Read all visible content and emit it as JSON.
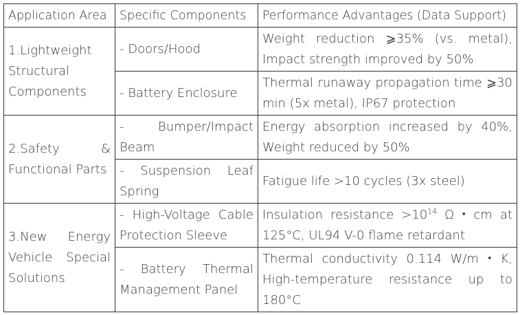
{
  "table": {
    "header": [
      "Application Area",
      "Specific Components",
      "Performance Advantages (Data Support)"
    ],
    "groups": [
      {
        "area": "1.Lightweight Structural Components",
        "rows": [
          {
            "component": "- Doors/Hood",
            "advantage": "Weight reduction ⩾35% (vs. metal), Impact strength improved by 50%"
          },
          {
            "component": "- Battery Enclosure",
            "advantage": "Thermal runaway propagation time ⩾30 min (5x metal), IP67 protection"
          }
        ]
      },
      {
        "area": "2.Safety & Functional Parts",
        "rows": [
          {
            "component": "- Bumper/Impact Beam",
            "advantage": "Energy absorption increased by 40%, Weight reduced by 50%"
          },
          {
            "component": "- Suspension Leaf Spring",
            "advantage": "Fatigue life >10 cycles (3x steel)"
          }
        ]
      },
      {
        "area": "3.New Energy Vehicle Special Solutions",
        "rows": [
          {
            "component": "- High-Voltage Cable Protection Sleeve",
            "advantage": {
              "text": "Insulation resistance >10",
              "superscript": "14",
              "rest": " Ω・cm at 125°C, UL94 V-0 flame retardant"
            }
          },
          {
            "component": "- Battery Thermal Management Panel",
            "advantage": "Thermal conductivity 0.114 W/m・K, High-temperature resistance up to 180°C"
          }
        ]
      }
    ]
  }
}
